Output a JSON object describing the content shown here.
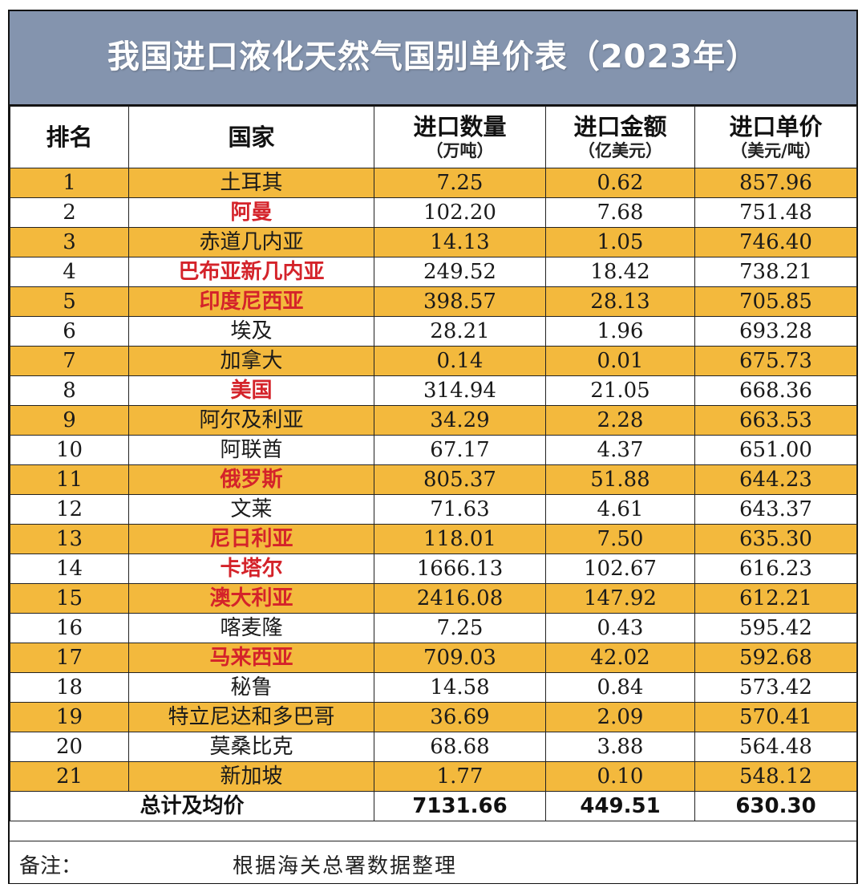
{
  "title": "我国进口液化天然气国别单价表（2023年）",
  "header": {
    "rank": "排名",
    "country": "国家",
    "quantity": {
      "label": "进口数量",
      "unit": "（万吨）"
    },
    "amount": {
      "label": "进口金额",
      "unit": "（亿美元）"
    },
    "price": {
      "label": "进口单价",
      "unit": "（美元/吨）"
    }
  },
  "rows": [
    {
      "rank": "1",
      "country": "土耳其",
      "highlight": false,
      "quantity": "7.25",
      "amount": "0.62",
      "price": "857.96"
    },
    {
      "rank": "2",
      "country": "阿曼",
      "highlight": true,
      "quantity": "102.20",
      "amount": "7.68",
      "price": "751.48"
    },
    {
      "rank": "3",
      "country": "赤道几内亚",
      "highlight": false,
      "quantity": "14.13",
      "amount": "1.05",
      "price": "746.40"
    },
    {
      "rank": "4",
      "country": "巴布亚新几内亚",
      "highlight": true,
      "quantity": "249.52",
      "amount": "18.42",
      "price": "738.21"
    },
    {
      "rank": "5",
      "country": "印度尼西亚",
      "highlight": true,
      "quantity": "398.57",
      "amount": "28.13",
      "price": "705.85"
    },
    {
      "rank": "6",
      "country": "埃及",
      "highlight": false,
      "quantity": "28.21",
      "amount": "1.96",
      "price": "693.28"
    },
    {
      "rank": "7",
      "country": "加拿大",
      "highlight": false,
      "quantity": "0.14",
      "amount": "0.01",
      "price": "675.73"
    },
    {
      "rank": "8",
      "country": "美国",
      "highlight": true,
      "quantity": "314.94",
      "amount": "21.05",
      "price": "668.36"
    },
    {
      "rank": "9",
      "country": "阿尔及利亚",
      "highlight": false,
      "quantity": "34.29",
      "amount": "2.28",
      "price": "663.53"
    },
    {
      "rank": "10",
      "country": "阿联酋",
      "highlight": false,
      "quantity": "67.17",
      "amount": "4.37",
      "price": "651.00"
    },
    {
      "rank": "11",
      "country": "俄罗斯",
      "highlight": true,
      "quantity": "805.37",
      "amount": "51.88",
      "price": "644.23"
    },
    {
      "rank": "12",
      "country": "文莱",
      "highlight": false,
      "quantity": "71.63",
      "amount": "4.61",
      "price": "643.37"
    },
    {
      "rank": "13",
      "country": "尼日利亚",
      "highlight": true,
      "quantity": "118.01",
      "amount": "7.50",
      "price": "635.30"
    },
    {
      "rank": "14",
      "country": "卡塔尔",
      "highlight": true,
      "quantity": "1666.13",
      "amount": "102.67",
      "price": "616.23"
    },
    {
      "rank": "15",
      "country": "澳大利亚",
      "highlight": true,
      "quantity": "2416.08",
      "amount": "147.92",
      "price": "612.21"
    },
    {
      "rank": "16",
      "country": "喀麦隆",
      "highlight": false,
      "quantity": "7.25",
      "amount": "0.43",
      "price": "595.42"
    },
    {
      "rank": "17",
      "country": "马来西亚",
      "highlight": true,
      "quantity": "709.03",
      "amount": "42.02",
      "price": "592.68"
    },
    {
      "rank": "18",
      "country": "秘鲁",
      "highlight": false,
      "quantity": "14.58",
      "amount": "0.84",
      "price": "573.42"
    },
    {
      "rank": "19",
      "country": "特立尼达和多巴哥",
      "highlight": false,
      "quantity": "36.69",
      "amount": "2.09",
      "price": "570.41"
    },
    {
      "rank": "20",
      "country": "莫桑比克",
      "highlight": false,
      "quantity": "68.68",
      "amount": "3.88",
      "price": "564.48"
    },
    {
      "rank": "21",
      "country": "新加坡",
      "highlight": false,
      "quantity": "1.77",
      "amount": "0.10",
      "price": "548.12"
    }
  ],
  "total": {
    "label": "总计及均价",
    "quantity": "7131.66",
    "amount": "449.51",
    "price": "630.30"
  },
  "note": {
    "label": "备注：",
    "text": "根据海关总署数据整理"
  },
  "colors": {
    "title_bg": "#8494ae",
    "odd_row_bg": "#f3b93d",
    "highlight_text": "#d4232a"
  }
}
